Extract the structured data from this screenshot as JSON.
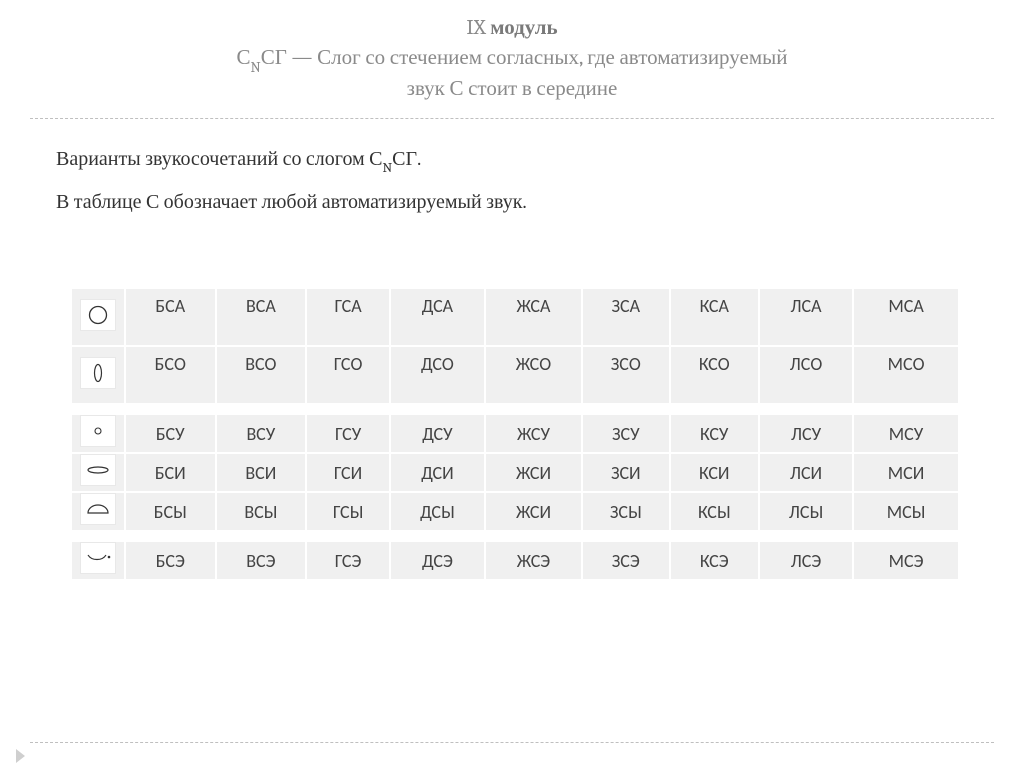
{
  "title": {
    "line1_prefix": "IX ",
    "line1_bold": "модуль",
    "line2_before_sub": "С",
    "line2_sub": "N",
    "line2_after_sub": "СГ — Слог со стечением согласных, где автоматизируемый",
    "line3": "звук С стоит в середине"
  },
  "intro": {
    "p1_before_sub": "Варианты звукосочетаний со слогом С",
    "p1_sub": "N",
    "p1_after_sub": "СГ.",
    "p2": "В таблице С обозначает любой автоматизируемый звук."
  },
  "table": {
    "background_color": "#f0f0f0",
    "font_color": "#444444",
    "rows": [
      {
        "tall": true,
        "icon": "circle-large",
        "cells": [
          "БСА",
          "ВСА",
          "ГСА",
          "ДСА",
          "ЖСА",
          "ЗСА",
          "КСА",
          "ЛСА",
          "МСА"
        ]
      },
      {
        "tall": true,
        "icon": "ellipse-vert",
        "cells": [
          "БСО",
          "ВСО",
          "ГСО",
          "ДСО",
          "ЖСО",
          "ЗСО",
          "КСО",
          "ЛСО",
          "МСО"
        ]
      },
      {
        "tall": false,
        "spacer_before": true,
        "icon": "circle-small",
        "cells": [
          "БСУ",
          "ВСУ",
          "ГСУ",
          "ДСУ",
          "ЖСУ",
          "ЗСУ",
          "КСУ",
          "ЛСУ",
          "МСУ"
        ]
      },
      {
        "tall": false,
        "icon": "ellipse-flat",
        "cells": [
          "БСИ",
          "ВСИ",
          "ГСИ",
          "ДСИ",
          "ЖСИ",
          "ЗСИ",
          "КСИ",
          "ЛСИ",
          "МСИ"
        ]
      },
      {
        "tall": false,
        "icon": "half-dome",
        "cells": [
          "БСЫ",
          "ВСЫ",
          "ГСЫ",
          "ДСЫ",
          "ЖСИ",
          "ЗСЫ",
          "КСЫ",
          "ЛСЫ",
          "МСЫ"
        ]
      },
      {
        "tall": false,
        "spacer_before": true,
        "icon": "bowl-dot",
        "cells": [
          "БСЭ",
          "ВСЭ",
          "ГСЭ",
          "ДСЭ",
          "ЖСЭ",
          "ЗСЭ",
          "КСЭ",
          "ЛСЭ",
          "МСЭ"
        ]
      }
    ]
  }
}
